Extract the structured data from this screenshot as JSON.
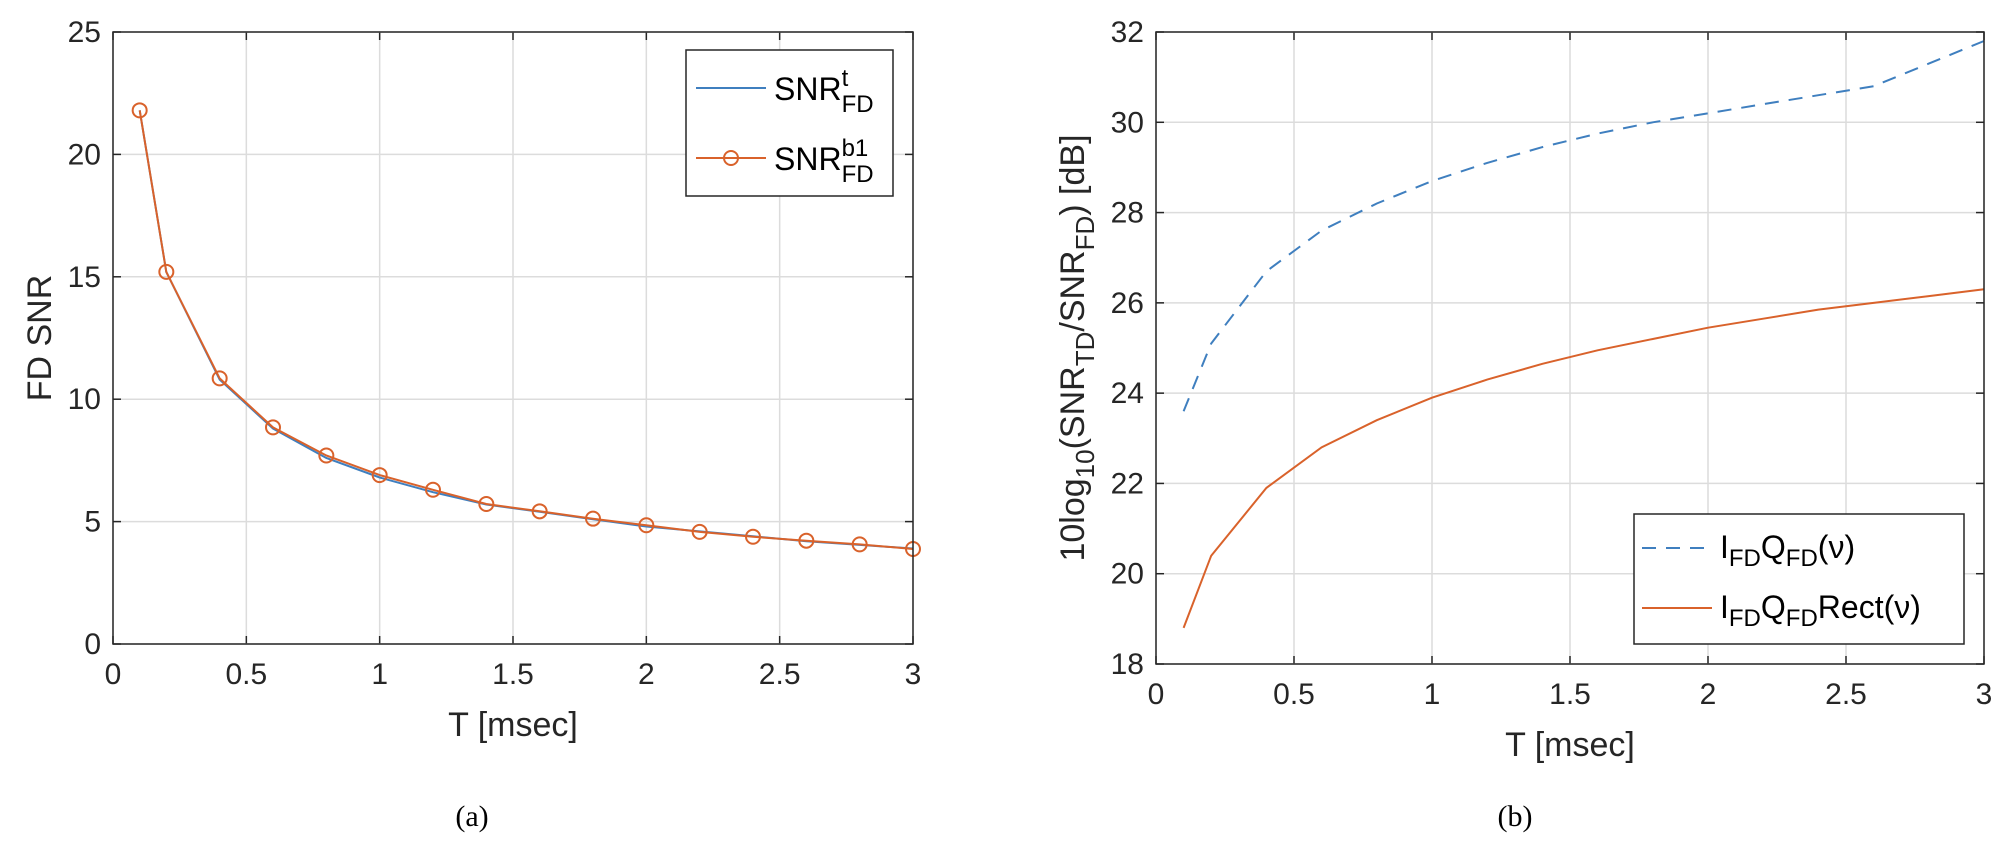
{
  "chart_data": [
    {
      "panel": "(a)",
      "type": "line",
      "xlabel": "T [msec]",
      "ylabel": "FD SNR",
      "xlim": [
        0,
        3
      ],
      "ylim": [
        0,
        25
      ],
      "xticks": [
        "0",
        "0.5",
        "1",
        "1.5",
        "2",
        "2.5",
        "3"
      ],
      "yticks": [
        "0",
        "5",
        "10",
        "15",
        "20",
        "25"
      ],
      "grid": true,
      "legend_position": "top-right",
      "x": [
        0.1,
        0.2,
        0.4,
        0.6,
        0.8,
        1.0,
        1.2,
        1.4,
        1.6,
        1.8,
        2.0,
        2.2,
        2.4,
        2.6,
        2.8,
        3.0
      ],
      "series": [
        {
          "name": "SNR",
          "name_sup": "t",
          "name_sub": "FD",
          "color": "#3f7fbf",
          "style": "solid",
          "marker": "none",
          "values": [
            21.8,
            15.2,
            10.8,
            8.8,
            7.6,
            6.8,
            6.2,
            5.7,
            5.4,
            5.1,
            4.8,
            4.6,
            4.4,
            4.2,
            4.05,
            3.9
          ]
        },
        {
          "name": "SNR",
          "name_sup": "b1",
          "name_sub": "FD",
          "color": "#d9622b",
          "style": "solid",
          "marker": "circle",
          "values": [
            21.8,
            15.2,
            10.85,
            8.85,
            7.7,
            6.9,
            6.3,
            5.72,
            5.42,
            5.12,
            4.85,
            4.58,
            4.38,
            4.22,
            4.07,
            3.88
          ]
        }
      ]
    },
    {
      "panel": "(b)",
      "type": "line",
      "xlabel": "T [msec]",
      "ylabel_parts": [
        "10log",
        "10",
        "(SNR",
        "TD",
        "/SNR",
        "FD",
        ") [dB]"
      ],
      "xlim": [
        0,
        3
      ],
      "ylim": [
        18,
        32
      ],
      "xticks": [
        "0",
        "0.5",
        "1",
        "1.5",
        "2",
        "2.5",
        "3"
      ],
      "yticks": [
        "18",
        "20",
        "22",
        "24",
        "26",
        "28",
        "30",
        "32"
      ],
      "grid": true,
      "legend_position": "bottom-right",
      "x": [
        0.1,
        0.2,
        0.4,
        0.6,
        0.8,
        1.0,
        1.2,
        1.4,
        1.6,
        1.8,
        2.0,
        2.2,
        2.4,
        2.6,
        2.8,
        3.0
      ],
      "series": [
        {
          "label_parts": [
            "I",
            "FD",
            "Q",
            "FD",
            "(ν)"
          ],
          "color": "#3f7fbf",
          "style": "dashed",
          "values": [
            23.6,
            25.1,
            26.7,
            27.6,
            28.2,
            28.7,
            29.1,
            29.45,
            29.75,
            30.0,
            30.2,
            30.4,
            30.6,
            30.8,
            31.3,
            31.8
          ]
        },
        {
          "label_parts": [
            "I",
            "FD",
            "Q",
            "FD",
            "Rect(ν)"
          ],
          "color": "#d9622b",
          "style": "solid",
          "values": [
            18.8,
            20.4,
            21.9,
            22.8,
            23.4,
            23.9,
            24.3,
            24.65,
            24.95,
            25.2,
            25.45,
            25.65,
            25.85,
            26.0,
            26.15,
            26.3
          ]
        }
      ]
    }
  ],
  "captions": [
    "(a)",
    "(b)"
  ]
}
